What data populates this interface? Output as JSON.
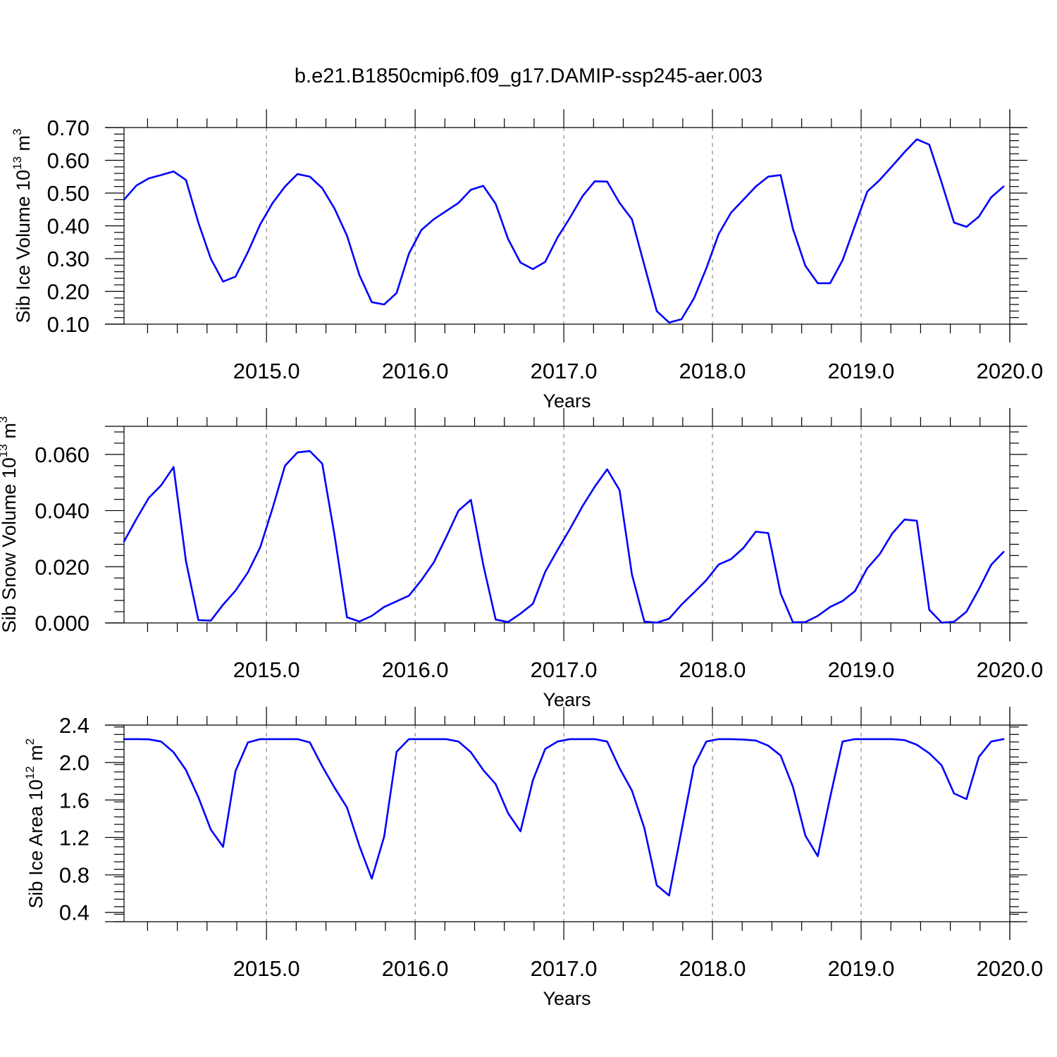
{
  "title": "b.e21.B1850cmip6.f09_g17.DAMIP-ssp245-aer.003",
  "line_color": "#0000ff",
  "chart_data": [
    {
      "type": "line",
      "xlabel": "Years",
      "ylabel": {
        "prefix": "Sib Ice Volume 10",
        "exponent": "13",
        "unit": " m",
        "unit_exponent": "3"
      },
      "xlim": [
        2014.0417,
        2020.0
      ],
      "ylim": [
        0.1,
        0.7
      ],
      "xticks": [
        2015,
        2016,
        2017,
        2018,
        2019,
        2020
      ],
      "xtick_labels": [
        "2015.0",
        "2016.0",
        "2017.0",
        "2018.0",
        "2019.0",
        "2020.0"
      ],
      "yticks": [
        0.1,
        0.2,
        0.3,
        0.4,
        0.5,
        0.6,
        0.7
      ],
      "ytick_labels": [
        "0.10",
        "0.20",
        "0.30",
        "0.40",
        "0.50",
        "0.60",
        "0.70"
      ],
      "y_minor_step": 0.02,
      "grid": "dashed vertical at labeled years",
      "x": [
        2014.0417,
        2014.125,
        2014.2083,
        2014.2917,
        2014.375,
        2014.4583,
        2014.5417,
        2014.625,
        2014.7083,
        2014.7917,
        2014.875,
        2014.9583,
        2015.0417,
        2015.125,
        2015.2083,
        2015.2917,
        2015.375,
        2015.4583,
        2015.5417,
        2015.625,
        2015.7083,
        2015.7917,
        2015.875,
        2015.9583,
        2016.0417,
        2016.125,
        2016.2083,
        2016.2917,
        2016.375,
        2016.4583,
        2016.5417,
        2016.625,
        2016.7083,
        2016.7917,
        2016.875,
        2016.9583,
        2017.0417,
        2017.125,
        2017.2083,
        2017.2917,
        2017.375,
        2017.4583,
        2017.5417,
        2017.625,
        2017.7083,
        2017.7917,
        2017.875,
        2017.9583,
        2018.0417,
        2018.125,
        2018.2083,
        2018.2917,
        2018.375,
        2018.4583,
        2018.5417,
        2018.625,
        2018.7083,
        2018.7917,
        2018.875,
        2018.9583,
        2019.0417,
        2019.125,
        2019.2083,
        2019.2917,
        2019.375,
        2019.4583,
        2019.5417,
        2019.625,
        2019.7083,
        2019.7917,
        2019.875,
        2019.9583
      ],
      "series": [
        {
          "values": [
            0.48,
            0.523,
            0.545,
            0.555,
            0.566,
            0.54,
            0.41,
            0.3,
            0.23,
            0.245,
            0.32,
            0.405,
            0.47,
            0.52,
            0.558,
            0.55,
            0.515,
            0.452,
            0.37,
            0.25,
            0.167,
            0.16,
            0.195,
            0.315,
            0.387,
            0.42,
            0.445,
            0.47,
            0.51,
            0.522,
            0.467,
            0.36,
            0.288,
            0.268,
            0.29,
            0.365,
            0.425,
            0.49,
            0.536,
            0.535,
            0.47,
            0.42,
            0.28,
            0.14,
            0.105,
            0.115,
            0.178,
            0.27,
            0.375,
            0.44,
            0.48,
            0.52,
            0.55,
            0.555,
            0.39,
            0.278,
            0.225,
            0.225,
            0.295,
            0.4,
            0.505,
            0.54,
            0.582,
            0.625,
            0.664,
            0.648,
            0.532,
            0.41,
            0.397,
            0.428,
            0.487,
            0.52
          ]
        }
      ]
    },
    {
      "type": "line",
      "xlabel": "Years",
      "ylabel": {
        "prefix": "Sib Snow Volume 10",
        "exponent": "13",
        "unit": " m",
        "unit_exponent": "3"
      },
      "xlim": [
        2014.0417,
        2020.0
      ],
      "ylim": [
        0.0,
        0.07
      ],
      "xticks": [
        2015,
        2016,
        2017,
        2018,
        2019,
        2020
      ],
      "xtick_labels": [
        "2015.0",
        "2016.0",
        "2017.0",
        "2018.0",
        "2019.0",
        "2020.0"
      ],
      "yticks": [
        0.0,
        0.02,
        0.04,
        0.06
      ],
      "ytick_labels": [
        "0.000",
        "0.020",
        "0.040",
        "0.060"
      ],
      "y_minor_step": 0.004,
      "grid": "dashed vertical at labeled years",
      "x": [
        2014.0417,
        2014.125,
        2014.2083,
        2014.2917,
        2014.375,
        2014.4583,
        2014.5417,
        2014.625,
        2014.7083,
        2014.7917,
        2014.875,
        2014.9583,
        2015.0417,
        2015.125,
        2015.2083,
        2015.2917,
        2015.375,
        2015.4583,
        2015.5417,
        2015.625,
        2015.7083,
        2015.7917,
        2015.875,
        2015.9583,
        2016.0417,
        2016.125,
        2016.2083,
        2016.2917,
        2016.375,
        2016.4583,
        2016.5417,
        2016.625,
        2016.7083,
        2016.7917,
        2016.875,
        2016.9583,
        2017.0417,
        2017.125,
        2017.2083,
        2017.2917,
        2017.375,
        2017.4583,
        2017.5417,
        2017.625,
        2017.7083,
        2017.7917,
        2017.875,
        2017.9583,
        2018.0417,
        2018.125,
        2018.2083,
        2018.2917,
        2018.375,
        2018.4583,
        2018.5417,
        2018.625,
        2018.7083,
        2018.7917,
        2018.875,
        2018.9583,
        2019.0417,
        2019.125,
        2019.2083,
        2019.2917,
        2019.375,
        2019.4583,
        2019.5417,
        2019.625,
        2019.7083,
        2019.7917,
        2019.875,
        2019.9583
      ],
      "series": [
        {
          "values": [
            0.029,
            0.037,
            0.0445,
            0.049,
            0.0555,
            0.022,
            0.001,
            0.0008,
            0.0065,
            0.0115,
            0.018,
            0.027,
            0.041,
            0.056,
            0.0607,
            0.0612,
            0.0567,
            0.031,
            0.002,
            0.0005,
            0.0025,
            0.0057,
            0.0077,
            0.0097,
            0.0152,
            0.0215,
            0.0305,
            0.04,
            0.0438,
            0.0207,
            0.0012,
            0.0003,
            0.0033,
            0.0068,
            0.0182,
            0.026,
            0.0335,
            0.0415,
            0.0485,
            0.0547,
            0.0473,
            0.0172,
            0.0005,
            0.0001,
            0.0015,
            0.0065,
            0.0108,
            0.0152,
            0.0208,
            0.0227,
            0.0267,
            0.0325,
            0.032,
            0.0105,
            0.0002,
            0.0003,
            0.0025,
            0.0057,
            0.0078,
            0.0113,
            0.0195,
            0.0245,
            0.0318,
            0.0368,
            0.0364,
            0.0047,
            0.0001,
            0.0004,
            0.004,
            0.012,
            0.0207,
            0.0253
          ]
        }
      ]
    },
    {
      "type": "line",
      "xlabel": "Years",
      "ylabel": {
        "prefix": "Sib Ice Area 10",
        "exponent": "12",
        "unit": " m",
        "unit_exponent": "2"
      },
      "xlim": [
        2014.0417,
        2020.0
      ],
      "ylim": [
        0.3,
        2.4
      ],
      "xticks": [
        2015,
        2016,
        2017,
        2018,
        2019,
        2020
      ],
      "xtick_labels": [
        "2015.0",
        "2016.0",
        "2017.0",
        "2018.0",
        "2019.0",
        "2020.0"
      ],
      "yticks": [
        0.4,
        0.8,
        1.2,
        1.6,
        2.0,
        2.4
      ],
      "ytick_labels": [
        "0.4",
        "0.8",
        "1.2",
        "1.6",
        "2.0",
        "2.4"
      ],
      "y_minor_step": 0.08,
      "grid": "dashed vertical at labeled years",
      "x": [
        2014.0417,
        2014.125,
        2014.2083,
        2014.2917,
        2014.375,
        2014.4583,
        2014.5417,
        2014.625,
        2014.7083,
        2014.7917,
        2014.875,
        2014.9583,
        2015.0417,
        2015.125,
        2015.2083,
        2015.2917,
        2015.375,
        2015.4583,
        2015.5417,
        2015.625,
        2015.7083,
        2015.7917,
        2015.875,
        2015.9583,
        2016.0417,
        2016.125,
        2016.2083,
        2016.2917,
        2016.375,
        2016.4583,
        2016.5417,
        2016.625,
        2016.7083,
        2016.7917,
        2016.875,
        2016.9583,
        2017.0417,
        2017.125,
        2017.2083,
        2017.2917,
        2017.375,
        2017.4583,
        2017.5417,
        2017.625,
        2017.7083,
        2017.7917,
        2017.875,
        2017.9583,
        2018.0417,
        2018.125,
        2018.2083,
        2018.2917,
        2018.375,
        2018.4583,
        2018.5417,
        2018.625,
        2018.7083,
        2018.7917,
        2018.875,
        2018.9583,
        2019.0417,
        2019.125,
        2019.2083,
        2019.2917,
        2019.375,
        2019.4583,
        2019.5417,
        2019.625,
        2019.7083,
        2019.7917,
        2019.875,
        2019.9583
      ],
      "series": [
        {
          "values": [
            2.25,
            2.25,
            2.248,
            2.225,
            2.11,
            1.92,
            1.63,
            1.285,
            1.1,
            1.91,
            2.215,
            2.25,
            2.25,
            2.25,
            2.25,
            2.215,
            1.96,
            1.73,
            1.52,
            1.11,
            0.76,
            1.21,
            2.115,
            2.25,
            2.25,
            2.25,
            2.25,
            2.225,
            2.11,
            1.92,
            1.77,
            1.46,
            1.265,
            1.81,
            2.145,
            2.225,
            2.25,
            2.25,
            2.25,
            2.225,
            1.94,
            1.7,
            1.3,
            0.69,
            0.58,
            1.27,
            1.96,
            2.225,
            2.25,
            2.25,
            2.245,
            2.235,
            2.18,
            2.075,
            1.74,
            1.22,
            1.0,
            1.63,
            2.225,
            2.25,
            2.25,
            2.25,
            2.25,
            2.24,
            2.19,
            2.1,
            1.97,
            1.67,
            1.61,
            2.06,
            2.225,
            2.25
          ]
        }
      ]
    }
  ]
}
